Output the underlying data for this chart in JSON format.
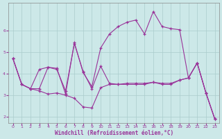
{
  "xlabel": "Windchill (Refroidissement éolien,°C)",
  "bg_color": "#cce8e8",
  "line_color": "#993399",
  "grid_color": "#aacccc",
  "hours": [
    0,
    1,
    2,
    3,
    4,
    5,
    6,
    7,
    8,
    9,
    10,
    11,
    12,
    13,
    14,
    15,
    16,
    17,
    18,
    19,
    20,
    21,
    22,
    23
  ],
  "line1": [
    4.7,
    3.5,
    3.3,
    3.3,
    4.3,
    4.25,
    3.05,
    5.45,
    4.05,
    3.4,
    5.2,
    5.85,
    6.2,
    6.4,
    6.5,
    5.85,
    6.9,
    6.2,
    6.1,
    6.05,
    3.8,
    4.5,
    3.1,
    1.9
  ],
  "line2": [
    4.7,
    3.5,
    3.3,
    4.2,
    4.3,
    4.2,
    3.2,
    5.4,
    4.1,
    3.3,
    4.35,
    3.55,
    3.5,
    3.55,
    3.55,
    3.55,
    3.6,
    3.55,
    3.55,
    3.7,
    3.8,
    4.5,
    3.1,
    1.9
  ],
  "line3": [
    4.7,
    3.5,
    3.3,
    3.2,
    3.05,
    3.1,
    3.0,
    2.85,
    2.45,
    2.4,
    3.35,
    3.5,
    3.5,
    3.5,
    3.5,
    3.5,
    3.6,
    3.5,
    3.5,
    3.7,
    3.8,
    4.5,
    3.1,
    1.9
  ],
  "ylim": [
    1.7,
    7.3
  ],
  "yticks": [
    2,
    3,
    4,
    5,
    6
  ],
  "xticks": [
    0,
    1,
    2,
    3,
    4,
    5,
    6,
    7,
    8,
    9,
    10,
    11,
    12,
    13,
    14,
    15,
    16,
    17,
    18,
    19,
    20,
    21,
    22,
    23
  ]
}
